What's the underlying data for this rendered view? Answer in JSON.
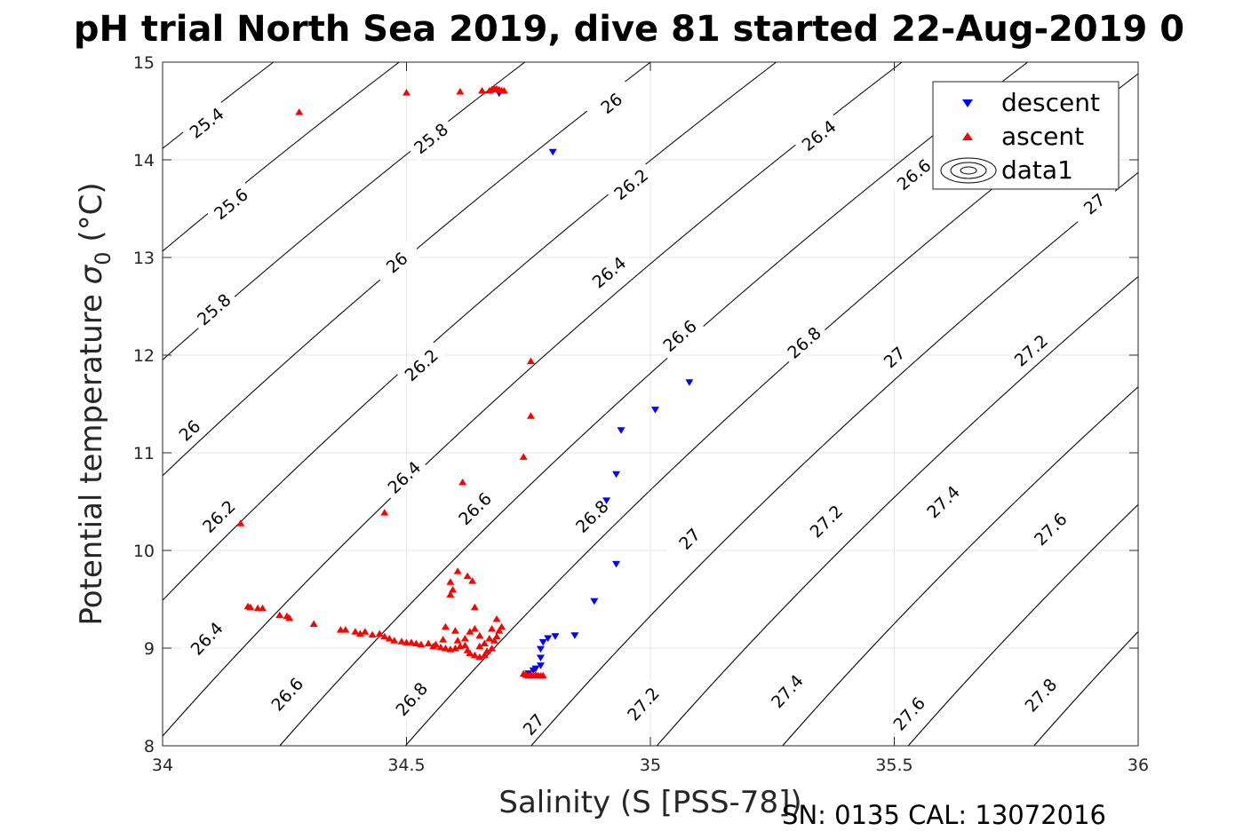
{
  "chart_data": {
    "type": "scatter",
    "title": "pH trial North Sea 2019, dive 81 started 22-Aug-2019 0",
    "xlabel": "Salinity (S [PSS-78])",
    "ylabel_prefix": "Potential temperature ",
    "ylabel_symbol": "σ",
    "ylabel_subscript": "0",
    "ylabel_suffix": " (°C)",
    "footer": "SN: 0135  CAL: 13072016",
    "xlim": [
      34,
      36
    ],
    "ylim": [
      8,
      15
    ],
    "x_ticks": [
      34,
      34.5,
      35,
      35.5,
      36
    ],
    "y_ticks": [
      8,
      9,
      10,
      11,
      12,
      13,
      14,
      15
    ],
    "x_tick_labels": [
      "34",
      "34.5",
      "35",
      "35.5",
      "36"
    ],
    "y_tick_labels": [
      "8",
      "9",
      "10",
      "11",
      "12",
      "13",
      "14",
      "15"
    ],
    "grid": true,
    "legend_position": "top-right",
    "legend": [
      {
        "label": "descent",
        "marker": "down-triangle",
        "color": "#0000ff"
      },
      {
        "label": "ascent",
        "marker": "up-triangle",
        "color": "#ff0000"
      },
      {
        "label": "data1",
        "marker": "contour",
        "color": "#000000"
      }
    ],
    "isopycnals": {
      "levels": [
        25.4,
        25.6,
        25.8,
        26,
        26.2,
        26.4,
        26.6,
        26.8,
        27,
        27.2,
        27.4,
        27.6,
        27.8
      ],
      "color": "#000000",
      "labels": [
        {
          "text": "25.4",
          "x": 34.09,
          "y": 14.38
        },
        {
          "text": "25.6",
          "x": 34.14,
          "y": 13.55
        },
        {
          "text": "25.8",
          "x": 34.105,
          "y": 12.47
        },
        {
          "text": "26",
          "x": 34.055,
          "y": 11.23
        },
        {
          "text": "26.2",
          "x": 34.115,
          "y": 10.35
        },
        {
          "text": "26.4",
          "x": 34.09,
          "y": 9.1
        },
        {
          "text": "26.6",
          "x": 34.255,
          "y": 8.53
        },
        {
          "text": "26.8",
          "x": 34.51,
          "y": 8.48
        },
        {
          "text": "27",
          "x": 34.76,
          "y": 8.22
        },
        {
          "text": "27.2",
          "x": 34.985,
          "y": 8.43
        },
        {
          "text": "27.4",
          "x": 35.28,
          "y": 8.56
        },
        {
          "text": "27.6",
          "x": 35.53,
          "y": 8.33
        },
        {
          "text": "27.8",
          "x": 35.8,
          "y": 8.52
        },
        {
          "text": "25.8",
          "x": 34.55,
          "y": 14.22
        },
        {
          "text": "26",
          "x": 34.48,
          "y": 12.95
        },
        {
          "text": "26.2",
          "x": 34.53,
          "y": 11.9
        },
        {
          "text": "26.4",
          "x": 34.495,
          "y": 10.75
        },
        {
          "text": "26.6",
          "x": 34.64,
          "y": 10.43
        },
        {
          "text": "26.8",
          "x": 34.88,
          "y": 10.35
        },
        {
          "text": "27",
          "x": 35.08,
          "y": 10.12
        },
        {
          "text": "27.2",
          "x": 35.36,
          "y": 10.3
        },
        {
          "text": "27.4",
          "x": 35.6,
          "y": 10.5
        },
        {
          "text": "27.6",
          "x": 35.82,
          "y": 10.22
        },
        {
          "text": "26",
          "x": 34.92,
          "y": 14.58
        },
        {
          "text": "26.2",
          "x": 34.96,
          "y": 13.75
        },
        {
          "text": "26.4",
          "x": 34.915,
          "y": 12.85
        },
        {
          "text": "26.6",
          "x": 35.06,
          "y": 12.2
        },
        {
          "text": "26.8",
          "x": 35.315,
          "y": 12.13
        },
        {
          "text": "27",
          "x": 35.5,
          "y": 11.98
        },
        {
          "text": "27.2",
          "x": 35.78,
          "y": 12.05
        },
        {
          "text": "26.4",
          "x": 35.345,
          "y": 14.25
        },
        {
          "text": "26.6",
          "x": 35.54,
          "y": 13.85
        },
        {
          "text": "27",
          "x": 35.91,
          "y": 13.55
        }
      ]
    },
    "series": [
      {
        "name": "descent",
        "marker": "down-triangle",
        "color": "#0000ff",
        "points": [
          [
            34.69,
            14.68
          ],
          [
            34.8,
            14.08
          ],
          [
            35.08,
            11.72
          ],
          [
            35.01,
            11.44
          ],
          [
            34.94,
            11.23
          ],
          [
            34.93,
            10.78
          ],
          [
            34.91,
            10.51
          ],
          [
            34.93,
            9.86
          ],
          [
            34.885,
            9.48
          ],
          [
            34.845,
            9.13
          ],
          [
            34.805,
            9.12
          ],
          [
            34.79,
            9.1
          ],
          [
            34.78,
            9.06
          ],
          [
            34.775,
            8.99
          ],
          [
            34.775,
            8.9
          ],
          [
            34.775,
            8.82
          ],
          [
            34.765,
            8.79
          ],
          [
            34.76,
            8.77
          ],
          [
            34.75,
            8.74
          ]
        ]
      },
      {
        "name": "ascent",
        "marker": "up-triangle",
        "color": "#ff0000",
        "points": [
          [
            34.28,
            14.49
          ],
          [
            34.5,
            14.69
          ],
          [
            34.61,
            14.7
          ],
          [
            34.655,
            14.71
          ],
          [
            34.67,
            14.71
          ],
          [
            34.675,
            14.72
          ],
          [
            34.68,
            14.73
          ],
          [
            34.685,
            14.73
          ],
          [
            34.69,
            14.72
          ],
          [
            34.695,
            14.71
          ],
          [
            34.7,
            14.71
          ],
          [
            34.755,
            11.94
          ],
          [
            34.755,
            11.38
          ],
          [
            34.74,
            10.96
          ],
          [
            34.615,
            10.7
          ],
          [
            34.455,
            10.39
          ],
          [
            34.16,
            10.28
          ],
          [
            34.605,
            9.79
          ],
          [
            34.625,
            9.74
          ],
          [
            34.635,
            9.69
          ],
          [
            34.59,
            9.68
          ],
          [
            34.595,
            9.6
          ],
          [
            34.59,
            9.55
          ],
          [
            34.64,
            9.42
          ],
          [
            34.175,
            9.43
          ],
          [
            34.18,
            9.42
          ],
          [
            34.195,
            9.41
          ],
          [
            34.205,
            9.41
          ],
          [
            34.24,
            9.34
          ],
          [
            34.255,
            9.33
          ],
          [
            34.26,
            9.31
          ],
          [
            34.31,
            9.25
          ],
          [
            34.365,
            9.19
          ],
          [
            34.375,
            9.19
          ],
          [
            34.395,
            9.17
          ],
          [
            34.405,
            9.15
          ],
          [
            34.415,
            9.17
          ],
          [
            34.43,
            9.14
          ],
          [
            34.445,
            9.15
          ],
          [
            34.455,
            9.12
          ],
          [
            34.465,
            9.1
          ],
          [
            34.475,
            9.08
          ],
          [
            34.49,
            9.07
          ],
          [
            34.5,
            9.06
          ],
          [
            34.51,
            9.06
          ],
          [
            34.52,
            9.05
          ],
          [
            34.53,
            9.04
          ],
          [
            34.545,
            9.05
          ],
          [
            34.555,
            9.02
          ],
          [
            34.57,
            9.01
          ],
          [
            34.58,
            9.0
          ],
          [
            34.59,
            8.99
          ],
          [
            34.6,
            9.0
          ],
          [
            34.61,
            9.02
          ],
          [
            34.62,
            9.03
          ],
          [
            34.625,
            8.98
          ],
          [
            34.63,
            8.95
          ],
          [
            34.64,
            8.93
          ],
          [
            34.65,
            8.91
          ],
          [
            34.66,
            8.93
          ],
          [
            34.665,
            8.97
          ],
          [
            34.675,
            9.0
          ],
          [
            34.68,
            9.08
          ],
          [
            34.685,
            9.12
          ],
          [
            34.69,
            9.18
          ],
          [
            34.695,
            9.22
          ],
          [
            34.685,
            9.3
          ],
          [
            34.675,
            9.2
          ],
          [
            34.67,
            9.1
          ],
          [
            34.66,
            9.05
          ],
          [
            34.65,
            9.13
          ],
          [
            34.64,
            9.2
          ],
          [
            34.63,
            9.17
          ],
          [
            34.62,
            9.1
          ],
          [
            34.605,
            9.08
          ],
          [
            34.6,
            9.18
          ],
          [
            34.58,
            9.22
          ],
          [
            34.575,
            9.09
          ],
          [
            34.56,
            9.04
          ],
          [
            34.65,
            9.02
          ],
          [
            34.74,
            8.74
          ],
          [
            34.745,
            8.73
          ],
          [
            34.75,
            8.72
          ],
          [
            34.755,
            8.73
          ],
          [
            34.76,
            8.72
          ],
          [
            34.765,
            8.73
          ],
          [
            34.77,
            8.72
          ],
          [
            34.775,
            8.72
          ],
          [
            34.78,
            8.72
          ]
        ]
      }
    ]
  }
}
